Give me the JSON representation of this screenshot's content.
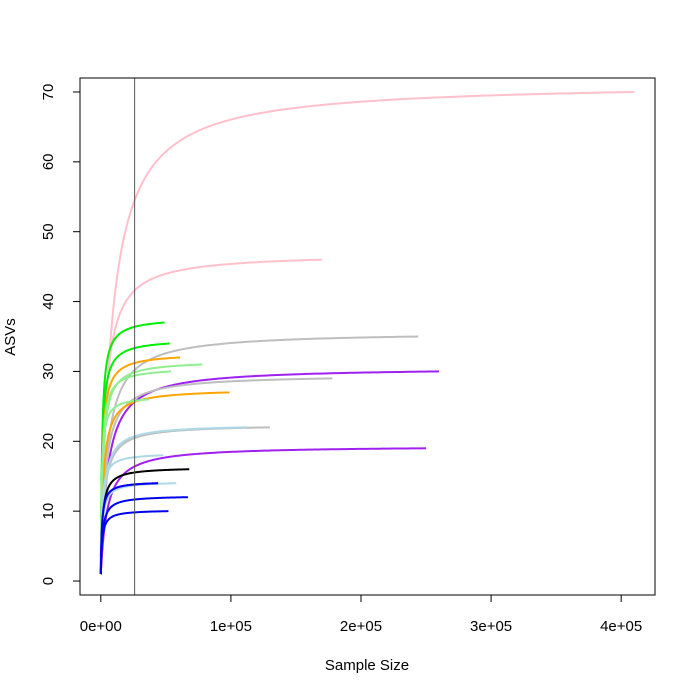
{
  "chart_data": {
    "type": "line",
    "title": "",
    "xlabel": "Sample Size",
    "ylabel": "ASVs",
    "xlim": [
      -16000,
      426000
    ],
    "ylim": [
      -2,
      72
    ],
    "x_ticks": [
      {
        "value": 0,
        "label": "0e+00"
      },
      {
        "value": 100000,
        "label": "1e+05"
      },
      {
        "value": 200000,
        "label": "2e+05"
      },
      {
        "value": 300000,
        "label": "3e+05"
      },
      {
        "value": 400000,
        "label": "4e+05"
      }
    ],
    "y_ticks": [
      0,
      10,
      20,
      30,
      40,
      50,
      60,
      70
    ],
    "vline_x": 26000,
    "vline_color": "#555555",
    "grid": false,
    "legend": "none",
    "series": [
      {
        "color": "#ffc0cb",
        "max_x": 410000,
        "max_y": 70
      },
      {
        "color": "#ffc0cb",
        "max_x": 170000,
        "max_y": 46
      },
      {
        "color": "#bebebe",
        "max_x": 244000,
        "max_y": 35
      },
      {
        "color": "#00ee00",
        "max_x": 49000,
        "max_y": 37
      },
      {
        "color": "#00ee00",
        "max_x": 53000,
        "max_y": 34
      },
      {
        "color": "#ffa500",
        "max_x": 61000,
        "max_y": 32
      },
      {
        "color": "#90ee90",
        "max_x": 78000,
        "max_y": 31
      },
      {
        "color": "#90ee90",
        "max_x": 54000,
        "max_y": 30
      },
      {
        "color": "#a020f0",
        "max_x": 260000,
        "max_y": 30
      },
      {
        "color": "#bebebe",
        "max_x": 178000,
        "max_y": 29
      },
      {
        "color": "#ffa500",
        "max_x": 99000,
        "max_y": 27
      },
      {
        "color": "#90ee90",
        "max_x": 37000,
        "max_y": 26
      },
      {
        "color": "#bebebe",
        "max_x": 130000,
        "max_y": 22
      },
      {
        "color": "#add8e6",
        "max_x": 112000,
        "max_y": 22
      },
      {
        "color": "#a020f0",
        "max_x": 250000,
        "max_y": 19
      },
      {
        "color": "#add8e6",
        "max_x": 48000,
        "max_y": 18
      },
      {
        "color": "#000000",
        "max_x": 68000,
        "max_y": 16
      },
      {
        "color": "#add8e6",
        "max_x": 58000,
        "max_y": 14
      },
      {
        "color": "#a020f0",
        "max_x": 44000,
        "max_y": 14
      },
      {
        "color": "#0000ee",
        "max_x": 44000,
        "max_y": 14
      },
      {
        "color": "#0000ee",
        "max_x": 67000,
        "max_y": 12
      },
      {
        "color": "#0000ee",
        "max_x": 52000,
        "max_y": 10
      }
    ]
  }
}
